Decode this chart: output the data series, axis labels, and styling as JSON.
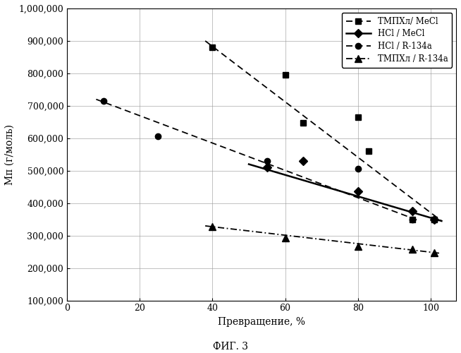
{
  "title": "",
  "xlabel": "Превращение, %",
  "ylabel": "Мп (г/моль)",
  "fig_label": "ФИГ. 3",
  "xlim": [
    0,
    107
  ],
  "ylim": [
    100000,
    1000000
  ],
  "yticks": [
    100000,
    200000,
    300000,
    400000,
    500000,
    600000,
    700000,
    800000,
    900000,
    1000000
  ],
  "xticks": [
    0,
    20,
    40,
    60,
    80,
    100
  ],
  "series": [
    {
      "label": "ТМПХл/ MeCl",
      "scatter_x": [
        40,
        60,
        65,
        80,
        83,
        95,
        101
      ],
      "scatter_y": [
        880000,
        795000,
        648000,
        665000,
        560000,
        350000,
        350000
      ],
      "trend_x": [
        38,
        103
      ],
      "trend_y": [
        900000,
        345000
      ],
      "linestyle": "dashed",
      "marker": "s",
      "color": "#000000",
      "linewidth": 1.3,
      "markersize": 6
    },
    {
      "label": "HCl / MeCl",
      "scatter_x": [
        55,
        65,
        80,
        95,
        101
      ],
      "scatter_y": [
        510000,
        530000,
        437000,
        375000,
        350000
      ],
      "trend_x": [
        50,
        103
      ],
      "trend_y": [
        520000,
        345000
      ],
      "linestyle": "solid",
      "marker": "D",
      "color": "#000000",
      "linewidth": 1.8,
      "markersize": 6
    },
    {
      "label": "HCl / R-134a",
      "scatter_x": [
        10,
        25,
        55,
        80,
        95
      ],
      "scatter_y": [
        715000,
        607000,
        530000,
        507000,
        350000
      ],
      "trend_x": [
        8,
        97
      ],
      "trend_y": [
        720000,
        345000
      ],
      "linestyle": "dashed",
      "marker": "o",
      "color": "#000000",
      "linewidth": 1.3,
      "markersize": 6
    },
    {
      "label": "ТМПХл / R-134a",
      "scatter_x": [
        40,
        60,
        80,
        95,
        101
      ],
      "scatter_y": [
        328000,
        293000,
        267000,
        258000,
        248000
      ],
      "trend_x": [
        38,
        103
      ],
      "trend_y": [
        330000,
        245000
      ],
      "linestyle": "dashdot",
      "marker": "^",
      "color": "#000000",
      "linewidth": 1.3,
      "markersize": 7
    }
  ]
}
